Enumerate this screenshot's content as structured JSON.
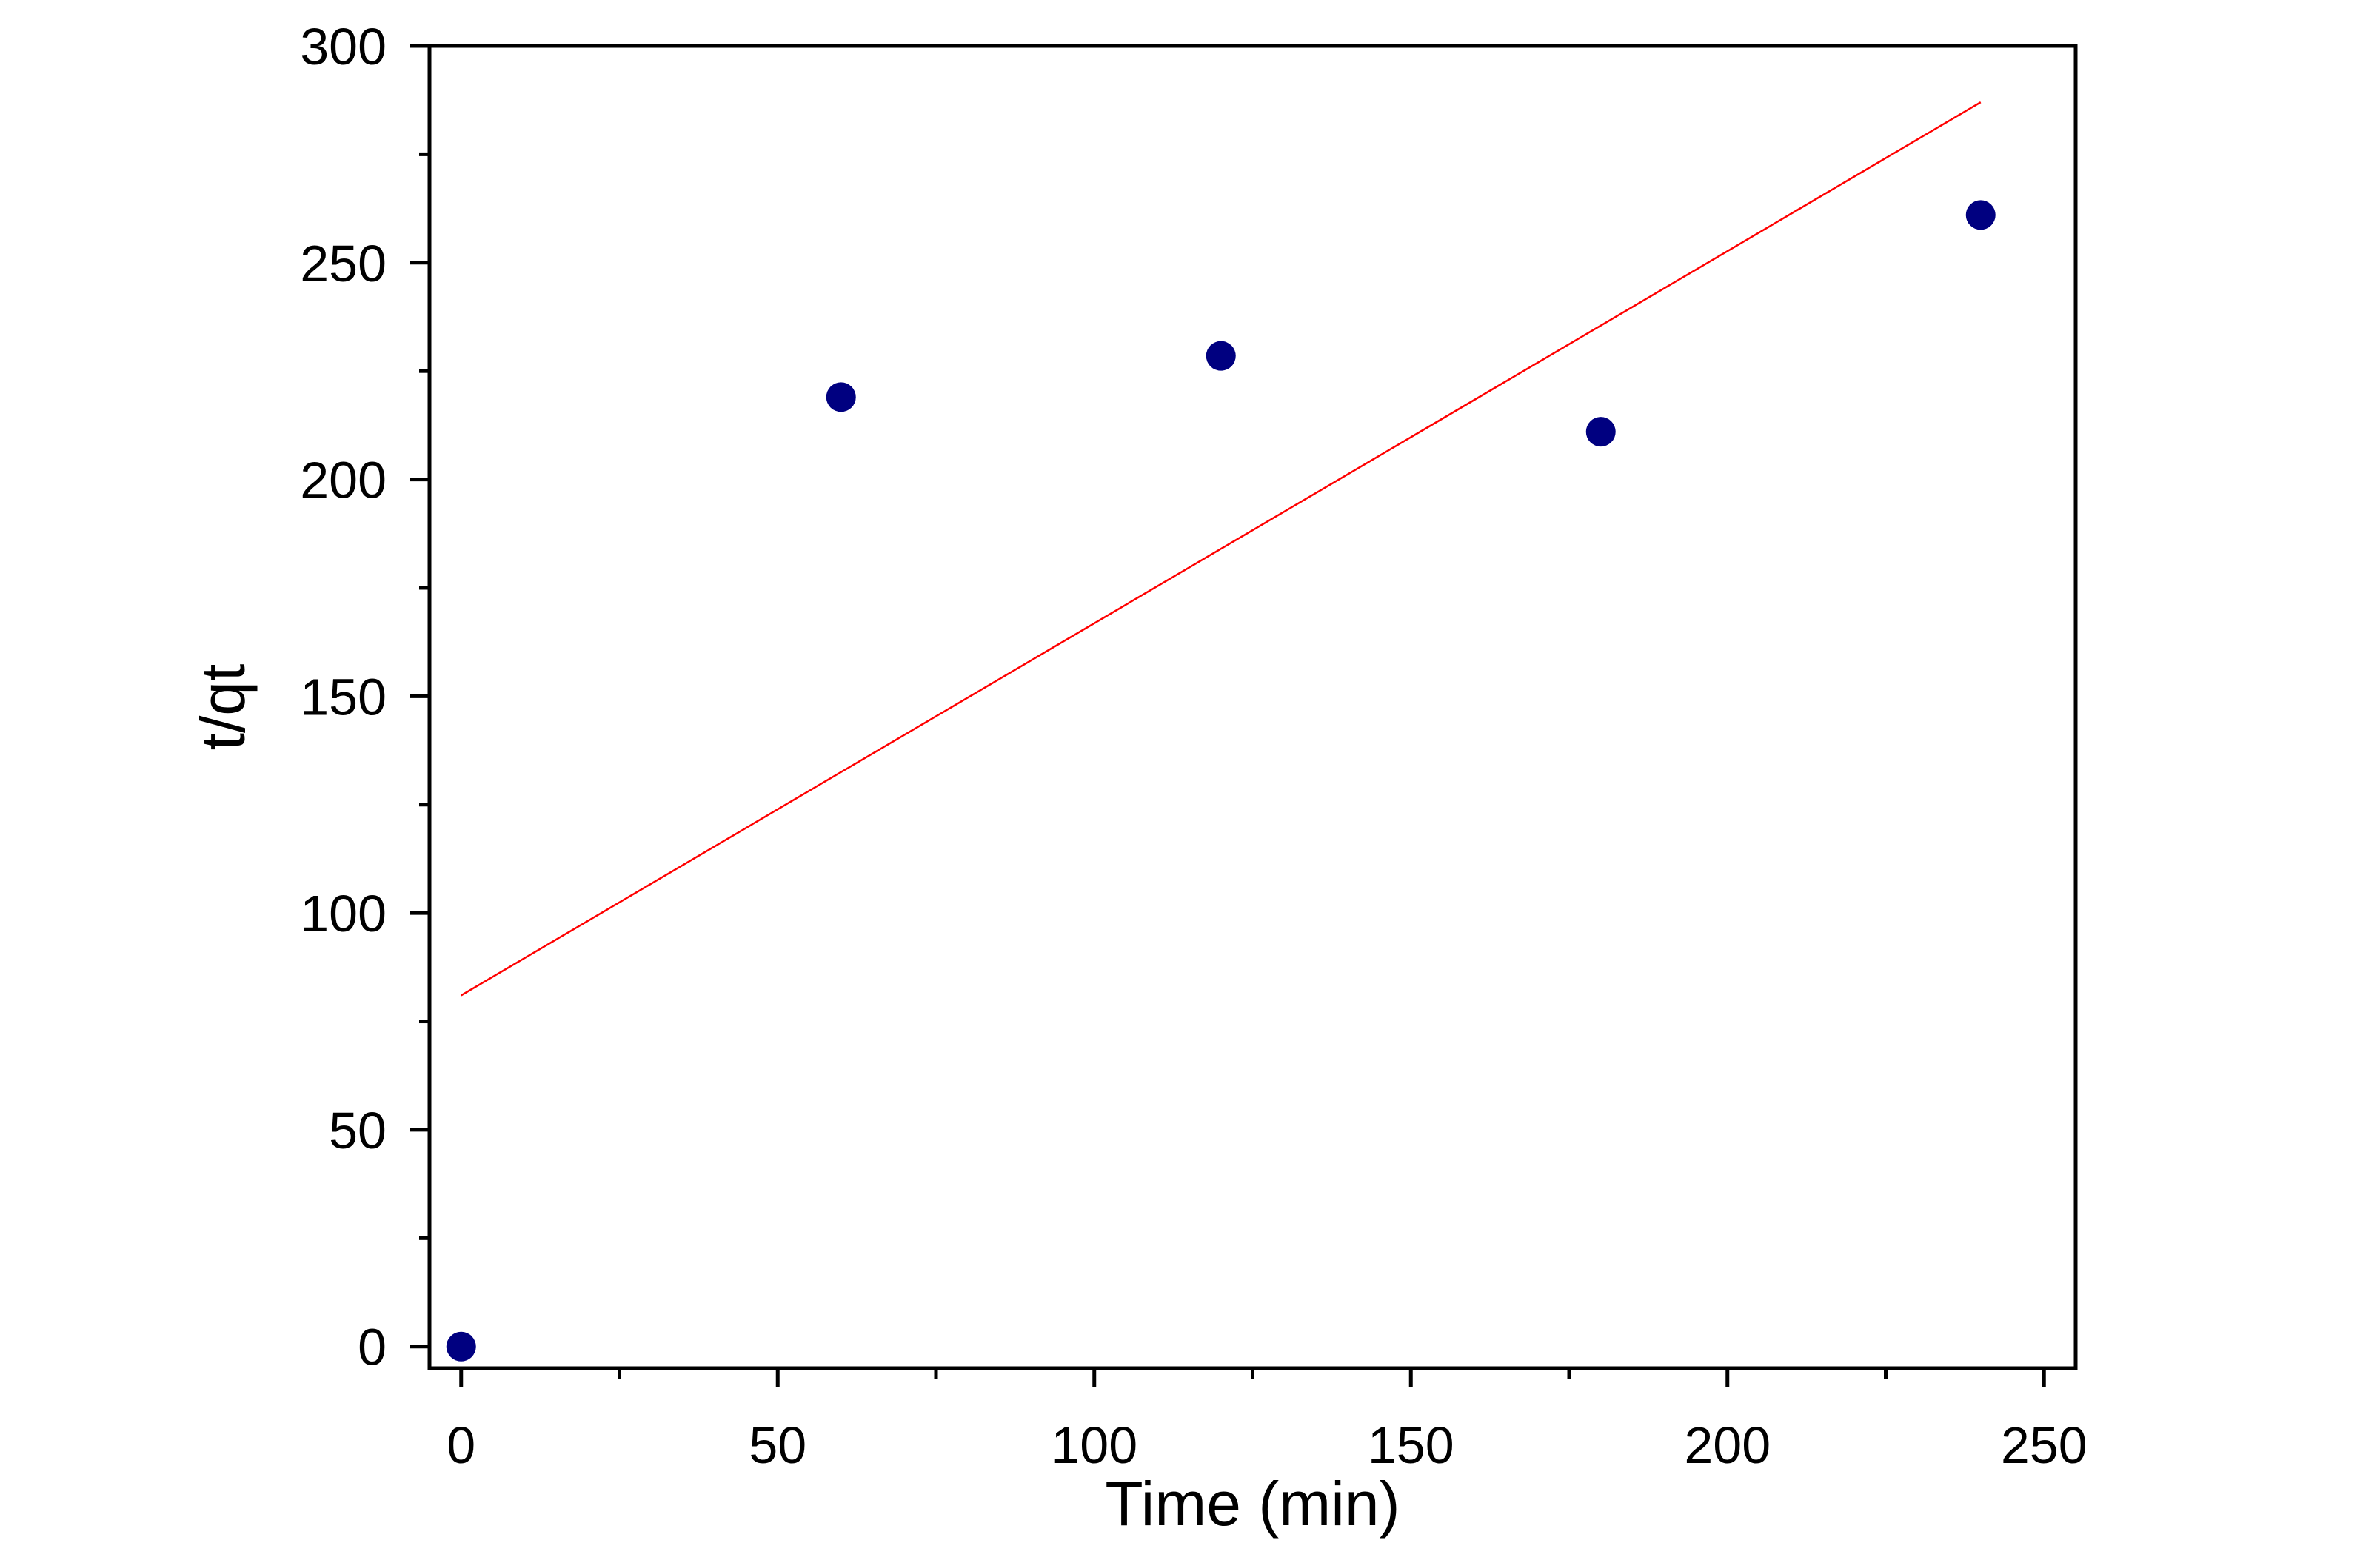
{
  "chart_data": {
    "type": "scatter",
    "title": "",
    "xlabel": "Time (min)",
    "ylabel": "t/qt",
    "xlim": [
      -5,
      255
    ],
    "ylim": [
      -5,
      300
    ],
    "x_ticks": [
      0,
      50,
      100,
      150,
      200,
      250
    ],
    "x_tick_labels": [
      "0",
      "50",
      "100",
      "150",
      "200",
      "250"
    ],
    "y_ticks": [
      0,
      50,
      100,
      150,
      200,
      250,
      300
    ],
    "y_tick_labels": [
      "0",
      "50",
      "100",
      "150",
      "200",
      "250",
      "300"
    ],
    "x_minor_step": 25,
    "y_minor_step": 25,
    "grid": false,
    "legend": "none",
    "series": [
      {
        "type": "scatter",
        "color": "#000080",
        "marker": "circle",
        "x": [
          0,
          60,
          120,
          180,
          240
        ],
        "y": [
          0,
          219,
          228.5,
          211,
          261
        ]
      },
      {
        "type": "line",
        "color": "#ff0000",
        "x": [
          0,
          240
        ],
        "y": [
          81,
          287
        ]
      }
    ]
  }
}
